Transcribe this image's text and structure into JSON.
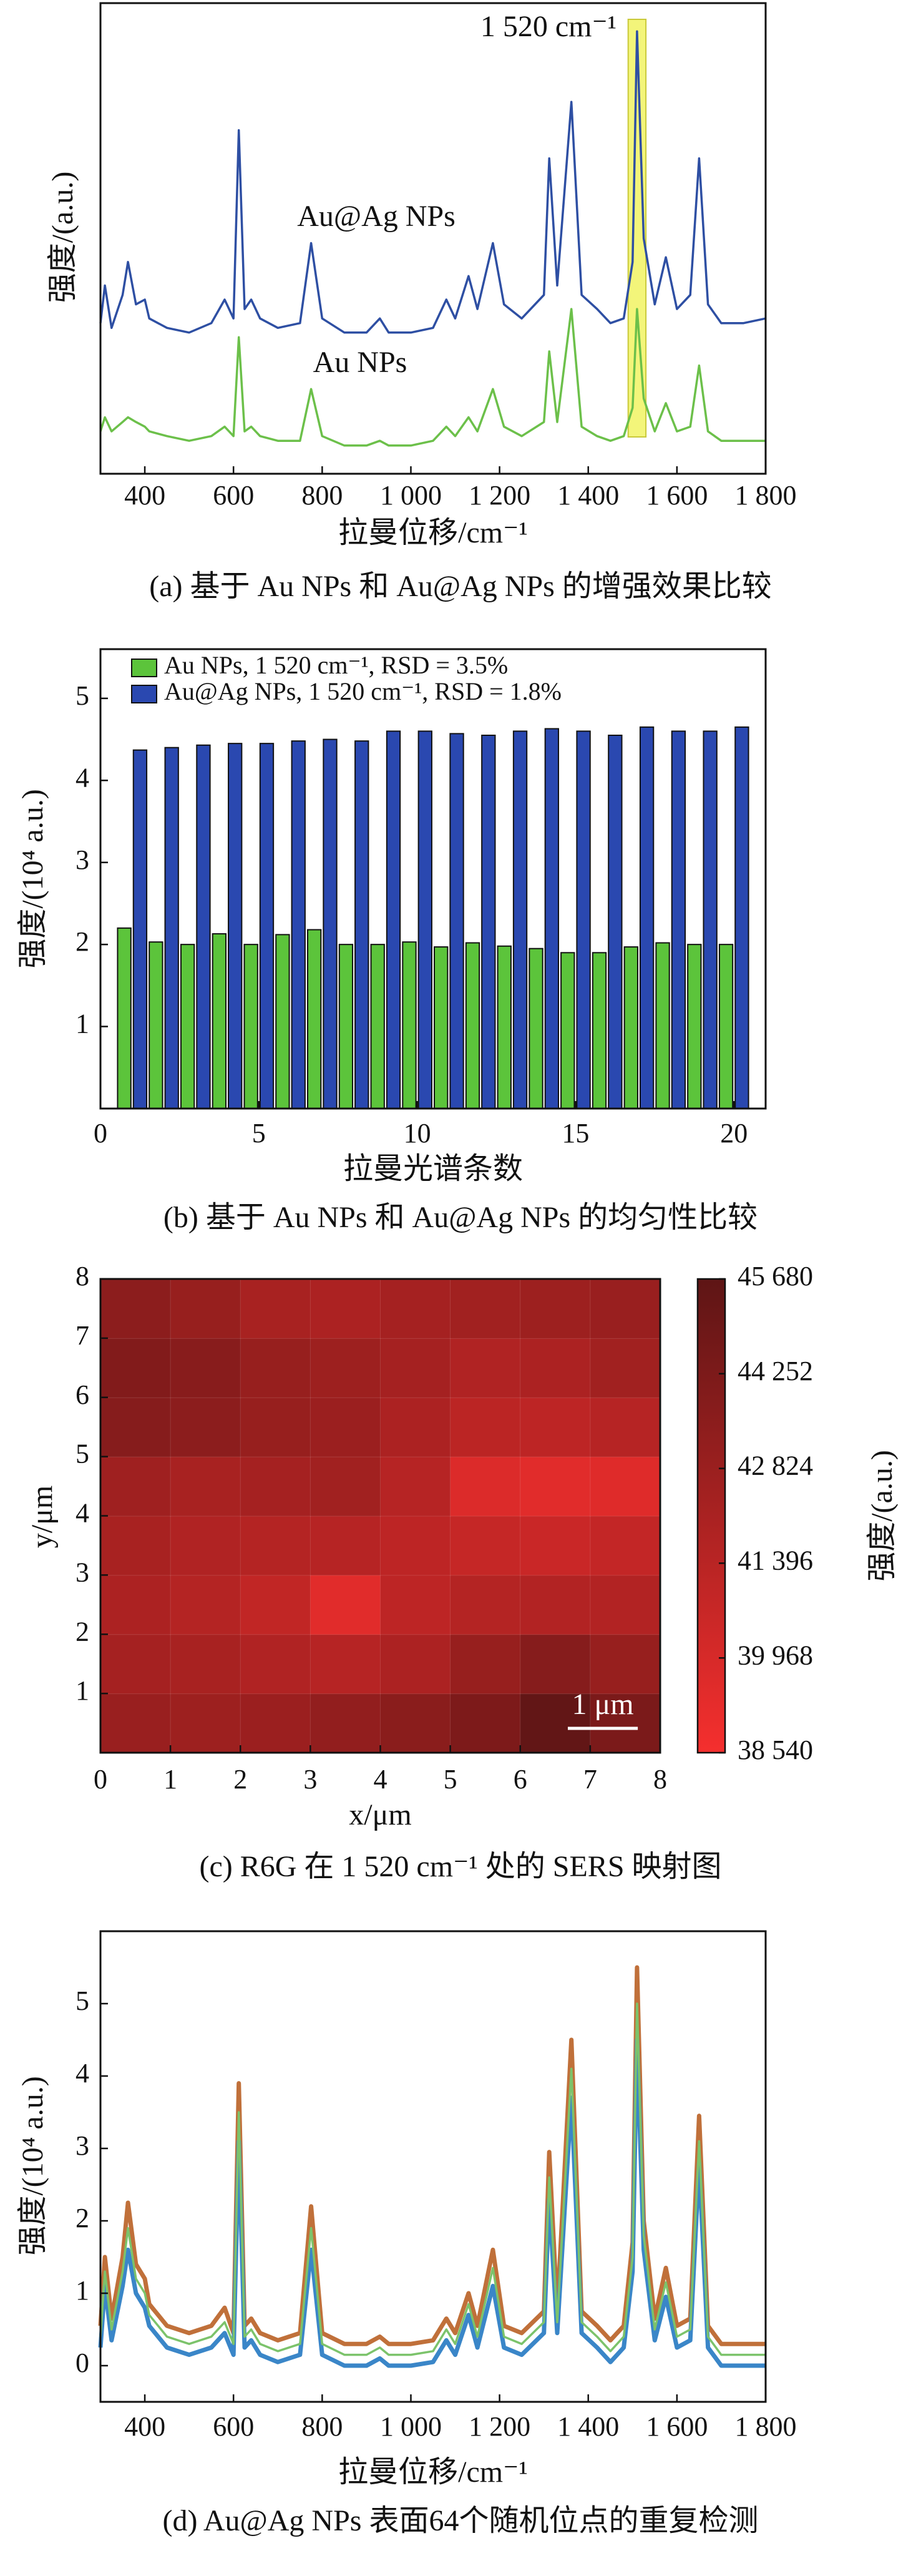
{
  "chart_data": [
    {
      "type": "line",
      "annotation": "1 520 cm⁻¹",
      "highlight": [
        1490,
        1530
      ],
      "highlight_color": "#f3f57a",
      "xlabel": "拉曼位移/cm⁻¹",
      "ylabel": "强度/(a.u.)",
      "caption": "(a) 基于 Au NPs 和 Au@Ag NPs 的增强效果比较",
      "xlim": [
        300,
        1800
      ],
      "ylim": [
        0,
        100
      ],
      "xticks": [
        400,
        600,
        800,
        {
          "value": 1000,
          "label": "1 000"
        },
        {
          "value": 1200,
          "label": "1 200"
        },
        {
          "value": 1400,
          "label": "1 400"
        },
        {
          "value": 1600,
          "label": "1 600"
        },
        {
          "value": 1800,
          "label": "1 800"
        }
      ],
      "x": [
        300,
        310,
        325,
        350,
        362,
        380,
        400,
        410,
        450,
        500,
        550,
        580,
        600,
        612,
        625,
        640,
        660,
        700,
        750,
        775,
        800,
        850,
        900,
        930,
        950,
        1000,
        1050,
        1080,
        1100,
        1130,
        1150,
        1185,
        1210,
        1250,
        1300,
        1312,
        1330,
        1362,
        1385,
        1420,
        1450,
        1480,
        1500,
        1510,
        1525,
        1550,
        1575,
        1600,
        1630,
        1650,
        1670,
        1700,
        1750,
        1800
      ],
      "series": [
        {
          "name": "Au@Ag NPs",
          "color": "#2e4fa3",
          "values": [
            32,
            40,
            31,
            38,
            45,
            36,
            37,
            33,
            31,
            30,
            32,
            37,
            33,
            73,
            35,
            37,
            33,
            31,
            32,
            49,
            33,
            30,
            30,
            33,
            30,
            30,
            31,
            37,
            33,
            42,
            35,
            49,
            36,
            33,
            38,
            67,
            40,
            79,
            38,
            35,
            32,
            33,
            45,
            94,
            50,
            36,
            46,
            35,
            38,
            67,
            36,
            32,
            32,
            33
          ]
        },
        {
          "name": "Au NPs",
          "color": "#6cc04a",
          "values": [
            9,
            12,
            9,
            11,
            12,
            11,
            10,
            9,
            8,
            7,
            8,
            10,
            8,
            29,
            9,
            10,
            8,
            7,
            7,
            18,
            8,
            6,
            6,
            7,
            6,
            6,
            7,
            10,
            8,
            12,
            9,
            18,
            10,
            8,
            11,
            26,
            11,
            35,
            10,
            8,
            7,
            8,
            14,
            35,
            16,
            9,
            15,
            9,
            10,
            23,
            9,
            7,
            7,
            7
          ]
        }
      ]
    },
    {
      "type": "bar",
      "xlabel": "拉曼光谱条数",
      "ylabel": "强度/(10⁴ a.u.)",
      "caption": "(b) 基于 Au NPs 和 Au@Ag NPs 的均匀性比较",
      "xlim": [
        0,
        21
      ],
      "ylim": [
        0,
        5.6
      ],
      "xticks": [
        0,
        5,
        10,
        15,
        20
      ],
      "yticks": [
        1,
        2,
        3,
        4,
        5
      ],
      "x": [
        1,
        2,
        3,
        4,
        5,
        6,
        7,
        8,
        9,
        10,
        11,
        12,
        13,
        14,
        15,
        16,
        17,
        18,
        19,
        20
      ],
      "series": [
        {
          "name": "Au NPs, 1 520 cm⁻¹, RSD = 3.5%",
          "color": "#5cc43b",
          "values": [
            2.2,
            2.03,
            2.0,
            2.13,
            2.0,
            2.12,
            2.18,
            2.0,
            2.0,
            2.03,
            1.97,
            2.02,
            1.98,
            1.95,
            1.9,
            1.9,
            1.97,
            2.02,
            2.0,
            2.0
          ]
        },
        {
          "name": "Au@Ag NPs, 1 520 cm⁻¹, RSD = 1.8%",
          "color": "#2a48b0",
          "values": [
            4.37,
            4.4,
            4.43,
            4.45,
            4.45,
            4.48,
            4.5,
            4.48,
            4.6,
            4.6,
            4.57,
            4.55,
            4.6,
            4.63,
            4.6,
            4.55,
            4.65,
            4.6,
            4.6,
            4.65
          ]
        }
      ]
    },
    {
      "type": "heatmap",
      "xlabel": "x/μm",
      "ylabel": "y/μm",
      "caption": "(c) R6G 在 1 520 cm⁻¹ 处的 SERS 映射图",
      "colorbar_label": "强度/(a.u.)",
      "colors": [
        "#f52f2e",
        "#5e1515"
      ],
      "xlim": [
        0,
        8
      ],
      "ylim": [
        0,
        8
      ],
      "xticks": [
        0,
        1,
        2,
        3,
        4,
        5,
        6,
        7,
        8
      ],
      "yticks": [
        1,
        2,
        3,
        4,
        5,
        6,
        7,
        8
      ],
      "zlim": [
        38540,
        45680
      ],
      "zticks": [
        {
          "value": 38540,
          "label": "38 540"
        },
        {
          "value": 39968,
          "label": "39 968"
        },
        {
          "value": 41396,
          "label": "41 396"
        },
        {
          "value": 42824,
          "label": "42 824"
        },
        {
          "value": 44252,
          "label": "44 252"
        },
        {
          "value": 45680,
          "label": "45 680"
        }
      ],
      "scale_bar": {
        "length": 1,
        "label": "1 μm"
      },
      "z": [
        [
          42900,
          42700,
          42800,
          43200,
          43600,
          44200,
          45500,
          44300
        ],
        [
          42300,
          42200,
          41800,
          41500,
          42000,
          43000,
          43800,
          43000
        ],
        [
          42000,
          41600,
          41000,
          39500,
          41200,
          41600,
          41700,
          41700
        ],
        [
          42200,
          41800,
          41600,
          41500,
          41200,
          40800,
          40600,
          40900
        ],
        [
          42600,
          42200,
          42300,
          42500,
          41500,
          39700,
          39500,
          39600
        ],
        [
          43800,
          43500,
          43000,
          42800,
          42000,
          41300,
          41200,
          41500
        ],
        [
          44000,
          43700,
          43000,
          42700,
          42300,
          41800,
          42000,
          42500
        ],
        [
          43500,
          43000,
          42200,
          42000,
          42300,
          42500,
          42700,
          42900
        ]
      ]
    },
    {
      "type": "line",
      "xlabel": "拉曼位移/cm⁻¹",
      "ylabel": "强度/(10⁴ a.u.)",
      "caption": "(d) Au@Ag NPs 表面64个随机位点的重复检测",
      "xlim": [
        300,
        1800
      ],
      "ylim": [
        -0.5,
        6
      ],
      "yticks": [
        0,
        1,
        2,
        3,
        4,
        5
      ],
      "xticks": [
        400,
        600,
        800,
        {
          "value": 1000,
          "label": "1 000"
        },
        {
          "value": 1200,
          "label": "1 200"
        },
        {
          "value": 1400,
          "label": "1 400"
        },
        {
          "value": 1600,
          "label": "1 600"
        },
        {
          "value": 1800,
          "label": "1 800"
        }
      ],
      "x": [
        300,
        310,
        325,
        350,
        362,
        380,
        400,
        410,
        450,
        500,
        550,
        580,
        600,
        612,
        625,
        640,
        660,
        700,
        750,
        775,
        800,
        850,
        900,
        930,
        950,
        1000,
        1050,
        1080,
        1100,
        1130,
        1150,
        1185,
        1210,
        1250,
        1300,
        1312,
        1330,
        1362,
        1385,
        1420,
        1450,
        1480,
        1500,
        1510,
        1525,
        1550,
        1575,
        1600,
        1630,
        1650,
        1670,
        1700,
        1750,
        1800
      ],
      "series": [
        {
          "color": "#c0703a",
          "values": [
            0.55,
            1.5,
            0.65,
            1.5,
            2.25,
            1.4,
            1.2,
            0.85,
            0.55,
            0.45,
            0.55,
            0.8,
            0.45,
            3.9,
            0.55,
            0.65,
            0.45,
            0.35,
            0.45,
            2.2,
            0.45,
            0.3,
            0.3,
            0.4,
            0.3,
            0.3,
            0.35,
            0.65,
            0.45,
            1.0,
            0.55,
            1.6,
            0.55,
            0.45,
            0.75,
            2.95,
            0.75,
            4.5,
            0.75,
            0.55,
            0.35,
            0.55,
            1.7,
            5.5,
            2.0,
            0.65,
            1.35,
            0.55,
            0.65,
            3.45,
            0.55,
            0.3,
            0.3,
            0.3
          ]
        },
        {
          "color": "#3a86c8",
          "values": [
            0.25,
            1.1,
            0.35,
            1.1,
            1.6,
            1.0,
            0.8,
            0.55,
            0.25,
            0.15,
            0.25,
            0.45,
            0.15,
            3.1,
            0.25,
            0.35,
            0.15,
            0.05,
            0.15,
            1.6,
            0.15,
            0,
            0,
            0.1,
            0,
            0,
            0.05,
            0.35,
            0.15,
            0.7,
            0.25,
            1.1,
            0.25,
            0.15,
            0.45,
            2.3,
            0.45,
            3.7,
            0.45,
            0.25,
            0.05,
            0.25,
            1.3,
            4.5,
            1.6,
            0.35,
            0.95,
            0.25,
            0.35,
            2.8,
            0.25,
            0,
            0,
            0
          ]
        },
        {
          "color": "#7cc36b",
          "values": [
            0.4,
            1.3,
            0.5,
            1.3,
            1.9,
            1.2,
            1.0,
            0.7,
            0.4,
            0.3,
            0.4,
            0.6,
            0.3,
            3.5,
            0.4,
            0.5,
            0.3,
            0.2,
            0.3,
            1.9,
            0.3,
            0.15,
            0.15,
            0.25,
            0.15,
            0.15,
            0.2,
            0.5,
            0.3,
            0.85,
            0.4,
            1.35,
            0.4,
            0.3,
            0.6,
            2.6,
            0.6,
            4.1,
            0.6,
            0.4,
            0.2,
            0.4,
            1.5,
            5.0,
            1.8,
            0.5,
            1.15,
            0.4,
            0.5,
            3.1,
            0.4,
            0.15,
            0.15,
            0.15
          ]
        }
      ]
    }
  ]
}
